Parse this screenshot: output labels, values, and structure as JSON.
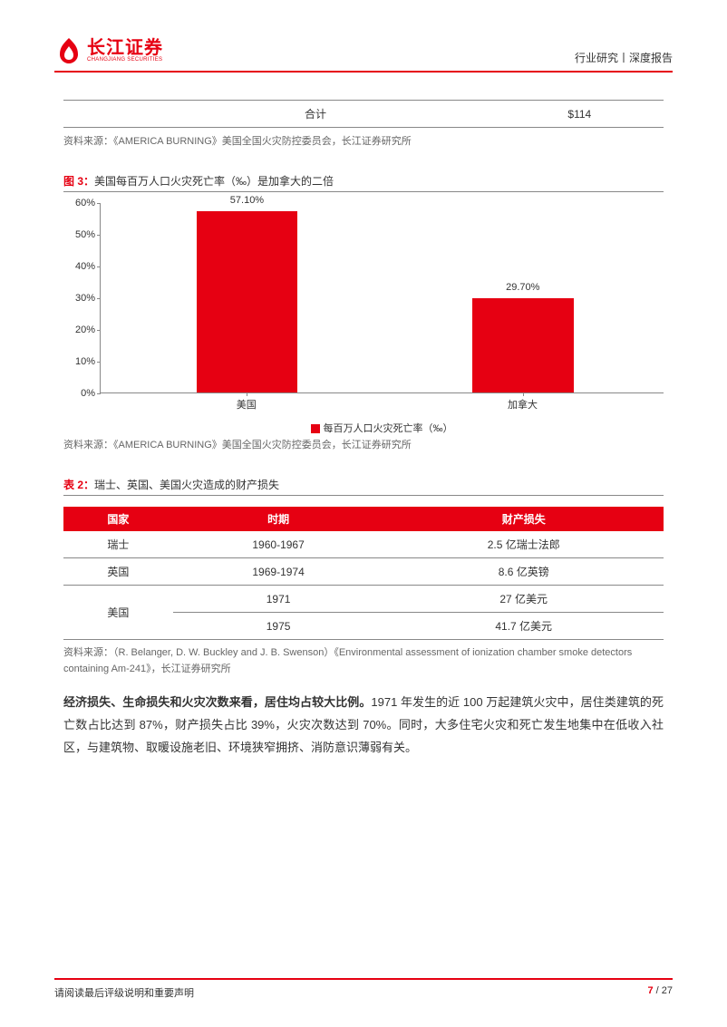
{
  "header": {
    "logo_cn": "长江证券",
    "logo_en": "CHANGJIANG SECURITIES",
    "right": "行业研究丨深度报告",
    "logo_color": "#e60012"
  },
  "summary_table": {
    "label": "合计",
    "value": "$114"
  },
  "source1": "资料来源：《AMERICA BURNING》美国全国火灾防控委员会，长江证券研究所",
  "figure3": {
    "caption_prefix": "图 3：",
    "caption": "美国每百万人口火灾死亡率（‰）是加拿大的二倍",
    "type": "bar",
    "categories": [
      "美国",
      "加拿大"
    ],
    "values": [
      57.1,
      29.7
    ],
    "value_labels": [
      "57.10%",
      "29.70%"
    ],
    "bar_color": "#e60012",
    "ylim": [
      0,
      60
    ],
    "ytick_step": 10,
    "ytick_suffix": "%",
    "bar_width_pct": 18,
    "bar_positions_pct": [
      17,
      66
    ],
    "legend": "每百万人口火灾死亡率（‰）",
    "grid_color": "#888888",
    "background_color": "#ffffff",
    "label_fontsize": 11
  },
  "source2": "资料来源：《AMERICA BURNING》美国全国火灾防控委员会，长江证券研究所",
  "table2": {
    "caption_prefix": "表 2：",
    "caption": "瑞士、英国、美国火灾造成的财产损失",
    "header_bg": "#e60012",
    "header_color": "#ffffff",
    "border_color": "#888888",
    "columns": [
      "国家",
      "时期",
      "财产损失"
    ],
    "rows": [
      {
        "country": "瑞士",
        "period": "1960-1967",
        "loss": "2.5 亿瑞士法郎"
      },
      {
        "country": "英国",
        "period": "1969-1974",
        "loss": "8.6 亿英镑"
      },
      {
        "country": "美国",
        "period": "1971",
        "loss": "27 亿美元",
        "rowspan": 2
      },
      {
        "country": "",
        "period": "1975",
        "loss": "41.7 亿美元"
      }
    ]
  },
  "source3": "资料来源：（R. Belanger, D. W. Buckley and J. B. Swenson）《Environmental assessment of ionization chamber smoke detectors containing Am-241》，长江证券研究所",
  "body": {
    "bold": "经济损失、生命损失和火灾次数来看，居住均占较大比例。",
    "text": "1971 年发生的近 100 万起建筑火灾中，居住类建筑的死亡数占比达到 87%，财产损失占比 39%，火灾次数达到 70%。同时，大多住宅火灾和死亡发生地集中在低收入社区，与建筑物、取暖设施老旧、环境狭窄拥挤、消防意识薄弱有关。"
  },
  "footer": {
    "left": "请阅读最后评级说明和重要声明",
    "page_current": "7",
    "page_sep": " / ",
    "page_total": "27"
  }
}
